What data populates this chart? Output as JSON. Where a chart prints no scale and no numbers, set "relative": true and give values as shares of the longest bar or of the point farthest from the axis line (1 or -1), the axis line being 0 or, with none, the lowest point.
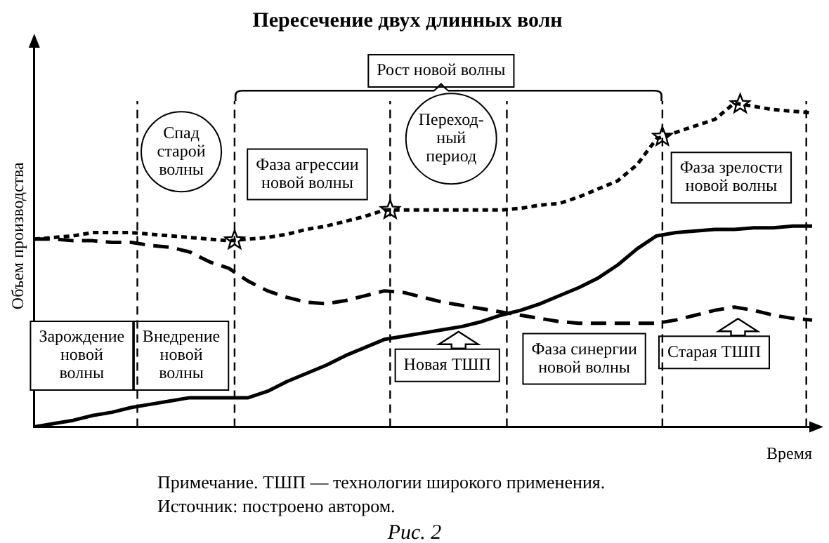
{
  "chart_data": {
    "type": "line",
    "relative": true,
    "title": "Пересечение двух длинных волн",
    "ylabel": "Объем производства",
    "xlabel": "Время",
    "grid": false,
    "legend": false,
    "categories": [
      null,
      null,
      null,
      null,
      null,
      null,
      null,
      null,
      null,
      null,
      null,
      null,
      null,
      null,
      null,
      null,
      null,
      null,
      null,
      null,
      null,
      null,
      null,
      null,
      null,
      null,
      null,
      null,
      null,
      null,
      null,
      null,
      null,
      null,
      null,
      null,
      null,
      null,
      null,
      null,
      null
    ],
    "series": [
      {
        "values": [
          0.58,
          0.585,
          0.59,
          0.6,
          0.6,
          0.6,
          0.595,
          0.59,
          0.585,
          0.58,
          0.575,
          0.58,
          0.585,
          0.595,
          0.61,
          0.62,
          0.635,
          0.65,
          0.67,
          0.67,
          0.67,
          0.67,
          0.67,
          0.67,
          0.67,
          0.675,
          0.685,
          0.69,
          0.71,
          0.735,
          0.76,
          0.81,
          0.89,
          0.91,
          0.93,
          0.95,
          1,
          0.99,
          0.98,
          0.975,
          0.97
        ],
        "color": "#000000",
        "line_style": "dotted"
      },
      {
        "values": [
          0.58,
          0.58,
          0.575,
          0.575,
          0.57,
          0.57,
          0.56,
          0.555,
          0.54,
          0.51,
          0.49,
          0.45,
          0.42,
          0.4,
          0.385,
          0.38,
          0.39,
          0.405,
          0.42,
          0.415,
          0.4,
          0.385,
          0.375,
          0.365,
          0.355,
          0.345,
          0.335,
          0.325,
          0.32,
          0.32,
          0.32,
          0.32,
          0.32,
          0.33,
          0.345,
          0.36,
          0.37,
          0.36,
          0.345,
          0.335,
          0.33
        ],
        "color": "#000000",
        "line_style": "dashed"
      },
      {
        "values": [
          0,
          0.01,
          0.02,
          0.035,
          0.045,
          0.06,
          0.07,
          0.08,
          0.09,
          0.09,
          0.09,
          0.09,
          0.11,
          0.14,
          0.165,
          0.19,
          0.22,
          0.245,
          0.27,
          0.28,
          0.29,
          0.3,
          0.31,
          0.325,
          0.345,
          0.36,
          0.38,
          0.405,
          0.43,
          0.46,
          0.5,
          0.55,
          0.59,
          0.6,
          0.605,
          0.61,
          0.61,
          0.615,
          0.615,
          0.62,
          0.62
        ],
        "color": "#000000",
        "line_style": "solid"
      }
    ],
    "annotations": [
      "Рост новой волны",
      "Спад\nстарой\nволны",
      "Фаза агрессии\nновой волны",
      "Переход-\nный\nпериод",
      "Фаза зрелости\nновой волны",
      "Зарождение\nновой\nволны",
      "Внедрение\nновой\nволны",
      "Новая ТШП",
      "Фаза синергии\nновой волны",
      "Старая ТШП",
      "Примечание. ТШП — технологии широкого применения.",
      "Источник: построено автором.",
      "Рис. 2"
    ]
  }
}
